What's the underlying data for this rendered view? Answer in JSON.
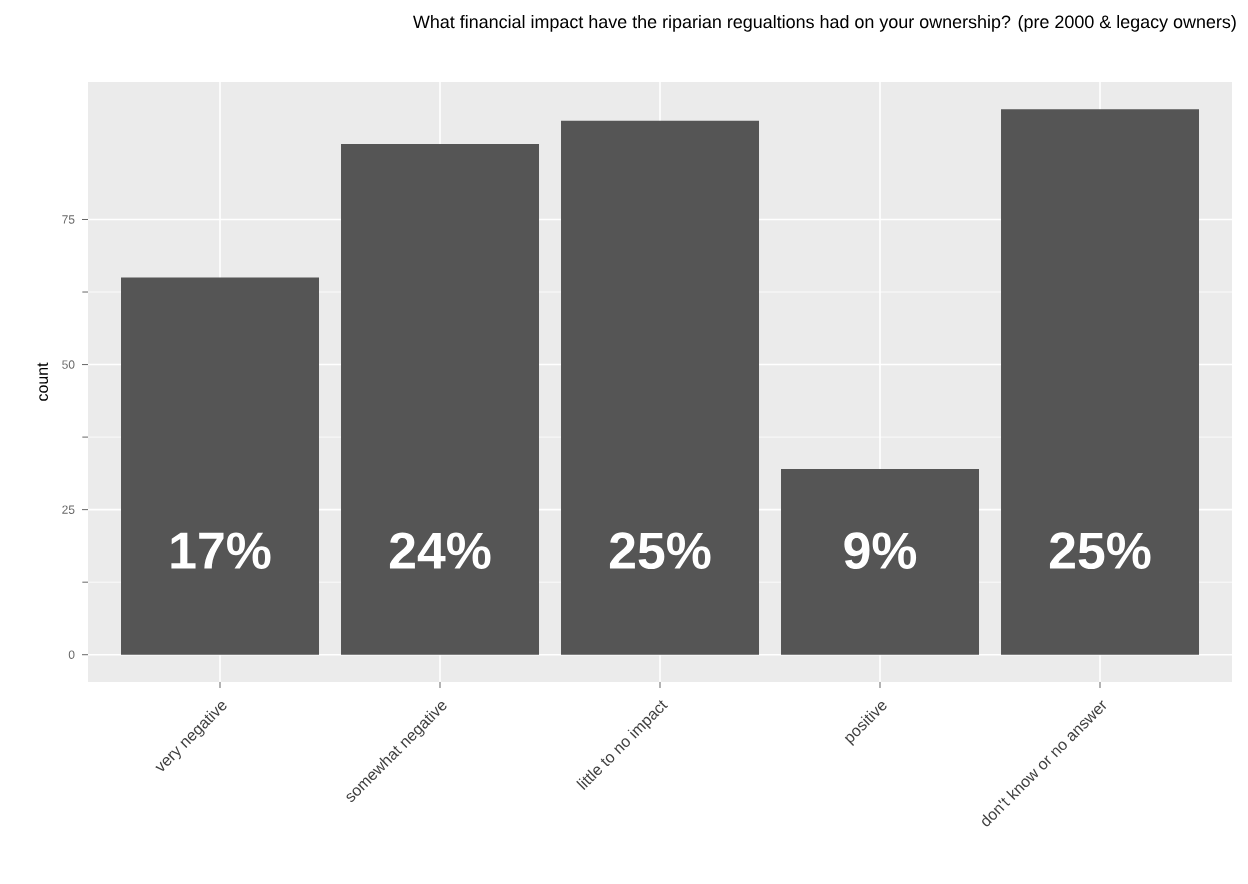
{
  "chart_data": {
    "type": "bar",
    "title": "What financial impact have the riparian regualtions had on your ownership? (pre 2000 & legacy owners)",
    "ylabel": "count",
    "categories": [
      "very negative",
      "somewhat negative",
      "little to no impact",
      "positive",
      "don't know or no answer"
    ],
    "values": [
      65,
      88,
      92,
      32,
      94
    ],
    "annotations": [
      "17%",
      "24%",
      "25%",
      "9%",
      "25%"
    ],
    "color": "#555555",
    "ylim": [
      -4.7,
      98.7
    ],
    "yticks": [
      0,
      25,
      50,
      75
    ],
    "grid": true
  }
}
